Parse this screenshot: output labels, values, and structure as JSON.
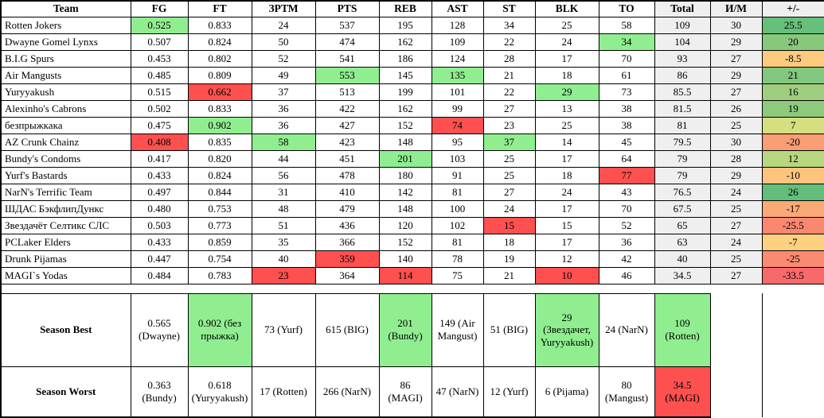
{
  "colors": {
    "green": "#90EE90",
    "red": "#FF5050",
    "gray": "#EFEFEF",
    "border": "#000000"
  },
  "table": {
    "columns": [
      {
        "label": "Team",
        "key": "team"
      },
      {
        "label": "FG",
        "key": "fg"
      },
      {
        "label": "FT",
        "key": "ft"
      },
      {
        "label": "ЗРТМ",
        "key": "3ptm"
      },
      {
        "label": "PTS",
        "key": "pts"
      },
      {
        "label": "REB",
        "key": "reb"
      },
      {
        "label": "AST",
        "key": "ast"
      },
      {
        "label": "ST",
        "key": "st"
      },
      {
        "label": "BLK",
        "key": "blk"
      },
      {
        "label": "TO",
        "key": "to"
      },
      {
        "label": "Total",
        "key": "total"
      },
      {
        "label": "И/М",
        "key": "games"
      },
      {
        "label": "+/-",
        "key": "plus-minus"
      }
    ],
    "gray_columns": [
      10,
      11,
      12
    ],
    "rows": [
      {
        "team": "Rotten Jokers",
        "values": [
          "0.525",
          "0.833",
          "24",
          "537",
          "195",
          "128",
          "34",
          "25",
          "58",
          "109",
          "30",
          "25.5"
        ],
        "bg": [
          "green",
          "",
          "",
          "",
          "",
          "",
          "",
          "",
          "",
          "gray",
          "gray",
          "#66BF7B"
        ]
      },
      {
        "team": "Dwayne Gomel Lynxs",
        "values": [
          "0.507",
          "0.824",
          "50",
          "474",
          "162",
          "109",
          "22",
          "24",
          "34",
          "104",
          "29",
          "20"
        ],
        "bg": [
          "",
          "",
          "",
          "",
          "",
          "",
          "",
          "",
          "green",
          "gray",
          "gray",
          "#87C87D"
        ]
      },
      {
        "team": "B.I.G Spurs",
        "values": [
          "0.453",
          "0.802",
          "52",
          "541",
          "186",
          "124",
          "28",
          "17",
          "70",
          "93",
          "27",
          "-8.5"
        ],
        "bg": [
          "",
          "",
          "",
          "",
          "",
          "",
          "",
          "",
          "",
          "gray",
          "gray",
          "#FDCA7E"
        ]
      },
      {
        "team": "Air Mangusts",
        "values": [
          "0.485",
          "0.809",
          "49",
          "553",
          "145",
          "135",
          "21",
          "18",
          "61",
          "86",
          "29",
          "21"
        ],
        "bg": [
          "",
          "",
          "",
          "green",
          "",
          "green",
          "",
          "",
          "",
          "gray",
          "gray",
          "#81C77D"
        ]
      },
      {
        "team": "Yuryyakush",
        "values": [
          "0.515",
          "0.662",
          "37",
          "513",
          "199",
          "101",
          "22",
          "29",
          "73",
          "85.5",
          "27",
          "16"
        ],
        "bg": [
          "",
          "red",
          "",
          "",
          "",
          "",
          "",
          "green",
          "",
          "gray",
          "gray",
          "#9FCF7E"
        ]
      },
      {
        "team": "Alexinho's Cabrons",
        "values": [
          "0.502",
          "0.833",
          "36",
          "422",
          "162",
          "99",
          "27",
          "13",
          "38",
          "81.5",
          "26",
          "19"
        ],
        "bg": [
          "",
          "",
          "",
          "",
          "",
          "",
          "",
          "",
          "",
          "gray",
          "gray",
          "#8DCA7D"
        ]
      },
      {
        "team": "безпрыжкака",
        "values": [
          "0.475",
          "0.902",
          "36",
          "427",
          "152",
          "74",
          "23",
          "25",
          "38",
          "81",
          "25",
          "7"
        ],
        "bg": [
          "",
          "green",
          "",
          "",
          "",
          "red",
          "",
          "",
          "",
          "gray",
          "gray",
          "#D5DF82"
        ]
      },
      {
        "team": "AZ Crunk Chainz",
        "values": [
          "0.408",
          "0.835",
          "58",
          "423",
          "148",
          "95",
          "37",
          "14",
          "45",
          "79.5",
          "30",
          "-20"
        ],
        "bg": [
          "red",
          "",
          "green",
          "",
          "",
          "",
          "green",
          "",
          "",
          "gray",
          "gray",
          "#FB9D75"
        ]
      },
      {
        "team": "Bundy's Condoms",
        "values": [
          "0.417",
          "0.820",
          "44",
          "451",
          "201",
          "103",
          "25",
          "17",
          "64",
          "79",
          "28",
          "12"
        ],
        "bg": [
          "",
          "",
          "",
          "",
          "green",
          "",
          "",
          "",
          "",
          "gray",
          "gray",
          "#B7D680"
        ]
      },
      {
        "team": "Yurf's Bastards",
        "values": [
          "0.433",
          "0.824",
          "56",
          "478",
          "180",
          "91",
          "25",
          "18",
          "77",
          "79",
          "29",
          "-10"
        ],
        "bg": [
          "",
          "",
          "",
          "",
          "",
          "",
          "",
          "",
          "red",
          "gray",
          "gray",
          "#FDC47D"
        ]
      },
      {
        "team": "NarN's Terrific Team",
        "values": [
          "0.497",
          "0.844",
          "31",
          "410",
          "142",
          "81",
          "27",
          "24",
          "43",
          "76.5",
          "24",
          "26"
        ],
        "bg": [
          "",
          "",
          "",
          "",
          "",
          "",
          "",
          "",
          "",
          "gray",
          "gray",
          "#63BE7B"
        ]
      },
      {
        "team": "ШДАС БэкфлипДункс",
        "values": [
          "0.480",
          "0.753",
          "48",
          "479",
          "148",
          "100",
          "24",
          "17",
          "70",
          "67.5",
          "25",
          "-17"
        ],
        "bg": [
          "",
          "",
          "",
          "",
          "",
          "",
          "",
          "",
          "",
          "gray",
          "gray",
          "#FBA977"
        ]
      },
      {
        "team": "Звездачёт Селтикс СЛС",
        "values": [
          "0.503",
          "0.773",
          "51",
          "436",
          "120",
          "102",
          "15",
          "15",
          "52",
          "65",
          "27",
          "-25.5"
        ],
        "bg": [
          "",
          "",
          "",
          "",
          "",
          "",
          "red",
          "",
          "",
          "gray",
          "gray",
          "#FA8871"
        ]
      },
      {
        "team": "PCLaker Elders",
        "values": [
          "0.433",
          "0.859",
          "35",
          "366",
          "152",
          "81",
          "18",
          "17",
          "36",
          "63",
          "24",
          "-7"
        ],
        "bg": [
          "",
          "",
          "",
          "",
          "",
          "",
          "",
          "",
          "",
          "gray",
          "gray",
          "#FED07F"
        ]
      },
      {
        "team": "Drunk Pijamas",
        "values": [
          "0.447",
          "0.754",
          "40",
          "359",
          "140",
          "78",
          "19",
          "12",
          "42",
          "40",
          "25",
          "-25"
        ],
        "bg": [
          "",
          "",
          "",
          "red",
          "",
          "",
          "",
          "",
          "",
          "gray",
          "gray",
          "#FA8A71"
        ]
      },
      {
        "team": "MAGI`s Yodas",
        "values": [
          "0.484",
          "0.783",
          "23",
          "364",
          "114",
          "75",
          "21",
          "10",
          "46",
          "34.5",
          "27",
          "-33.5"
        ],
        "bg": [
          "",
          "",
          "red",
          "",
          "red",
          "",
          "",
          "red",
          "",
          "gray",
          "gray",
          "#F8696B"
        ]
      }
    ],
    "summary": [
      {
        "label": "Season Best",
        "values": [
          "0.565 (Dwayne)",
          "0.902 (без прыжка)",
          "73 (Yurf)",
          "615 (BIG)",
          "201 (Bundy)",
          "149 (Air Mangust)",
          "51 (BIG)",
          "29 (Звездачет, Yuryyakush)",
          "24 (NarN)",
          "109 (Rotten)",
          "",
          ""
        ],
        "bg": [
          "",
          "green",
          "",
          "",
          "green",
          "",
          "",
          "green",
          "",
          "green",
          "none",
          "none"
        ]
      },
      {
        "label": "Season Worst",
        "values": [
          "0.363 (Bundy)",
          "0.618 (Yuryyakush)",
          "17 (Rotten)",
          "266 (NarN)",
          "86 (MAGI)",
          "47 (NarN)",
          "12 (Yurf)",
          "6 (Pijama)",
          "80 (Mangust)",
          "34.5 (MAGI)",
          "",
          ""
        ],
        "bg": [
          "",
          "",
          "",
          "",
          "",
          "",
          "",
          "",
          "",
          "red",
          "none",
          "none"
        ]
      }
    ]
  }
}
